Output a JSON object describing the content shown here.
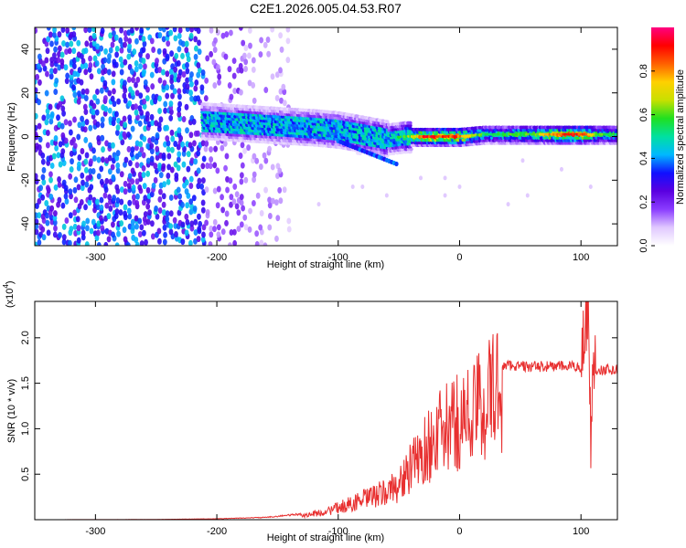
{
  "title": "C2E1.2026.005.04.53.R07",
  "chart_data": [
    {
      "type": "heatmap",
      "xlabel": "Height of straight line (km)",
      "ylabel": "Frequency (Hz)",
      "xlim": [
        -350,
        130
      ],
      "ylim": [
        -50,
        50
      ],
      "xticks": [
        -300,
        -200,
        -100,
        0,
        100
      ],
      "yticks": [
        -40,
        -20,
        0,
        20,
        40
      ],
      "colorbar": {
        "label": "Normalized spectral amplitude",
        "range": [
          0,
          1
        ],
        "ticks": [
          0.0,
          0.2,
          0.4,
          0.6,
          0.8
        ],
        "colors": [
          "#ffffff",
          "#e0c8ff",
          "#8a3cff",
          "#5a00e0",
          "#1010ff",
          "#00b8ff",
          "#00e0a0",
          "#20e020",
          "#c8e000",
          "#ffd000",
          "#ff6000",
          "#ff0000",
          "#ff0080"
        ]
      },
      "ridge": [
        {
          "x": -210,
          "y": 7,
          "amp": 0.38
        },
        {
          "x": -180,
          "y": 6,
          "amp": 0.42
        },
        {
          "x": -150,
          "y": 5,
          "amp": 0.4
        },
        {
          "x": -120,
          "y": 4,
          "amp": 0.42
        },
        {
          "x": -100,
          "y": 3,
          "amp": 0.45
        },
        {
          "x": -80,
          "y": 1,
          "amp": 0.48
        },
        {
          "x": -60,
          "y": -1,
          "amp": 0.5
        },
        {
          "x": -45,
          "y": 0,
          "amp": 0.6
        },
        {
          "x": -30,
          "y": 0,
          "amp": 0.95
        },
        {
          "x": -10,
          "y": 0,
          "amp": 0.95
        },
        {
          "x": 0,
          "y": 0,
          "amp": 0.92
        },
        {
          "x": 20,
          "y": 1,
          "amp": 0.6
        },
        {
          "x": 40,
          "y": 1,
          "amp": 0.62
        },
        {
          "x": 60,
          "y": 1,
          "amp": 0.65
        },
        {
          "x": 80,
          "y": 1,
          "amp": 0.92
        },
        {
          "x": 100,
          "y": 1,
          "amp": 0.95
        },
        {
          "x": 115,
          "y": 1,
          "amp": 0.65
        },
        {
          "x": 130,
          "y": 1,
          "amp": 0.6
        }
      ]
    },
    {
      "type": "line",
      "xlabel": "Height of straight line (km)",
      "ylabel": "SNR (10 * v/v)",
      "yscale_label": "(x10",
      "yscale_exponent": "4",
      "xlim": [
        -350,
        130
      ],
      "ylim": [
        0,
        24000
      ],
      "xticks": [
        -300,
        -200,
        -100,
        0,
        100
      ],
      "yticks": [
        5000,
        10000,
        15000,
        20000
      ],
      "ytick_labels": [
        "0.5",
        "1.0",
        "1.5",
        "2.0"
      ],
      "color": "#e83030",
      "envelope": [
        {
          "x": -350,
          "y": 0
        },
        {
          "x": -250,
          "y": 20
        },
        {
          "x": -200,
          "y": 80
        },
        {
          "x": -160,
          "y": 200
        },
        {
          "x": -130,
          "y": 500
        },
        {
          "x": -110,
          "y": 1000
        },
        {
          "x": -100,
          "y": 1500
        },
        {
          "x": -90,
          "y": 2000
        },
        {
          "x": -80,
          "y": 2500
        },
        {
          "x": -70,
          "y": 3000
        },
        {
          "x": -60,
          "y": 3500
        },
        {
          "x": -50,
          "y": 4500
        },
        {
          "x": -40,
          "y": 6500
        },
        {
          "x": -30,
          "y": 8500
        },
        {
          "x": -20,
          "y": 10500
        },
        {
          "x": -10,
          "y": 11500
        },
        {
          "x": 0,
          "y": 12500
        },
        {
          "x": 10,
          "y": 13500
        },
        {
          "x": 20,
          "y": 15000
        },
        {
          "x": 30,
          "y": 16500
        },
        {
          "x": 40,
          "y": 17000
        },
        {
          "x": 60,
          "y": 16800
        },
        {
          "x": 80,
          "y": 16900
        },
        {
          "x": 100,
          "y": 16800
        },
        {
          "x": 103,
          "y": 21000
        },
        {
          "x": 106,
          "y": 23500
        },
        {
          "x": 108,
          "y": 9000
        },
        {
          "x": 110,
          "y": 16500
        },
        {
          "x": 130,
          "y": 16500
        }
      ]
    }
  ]
}
